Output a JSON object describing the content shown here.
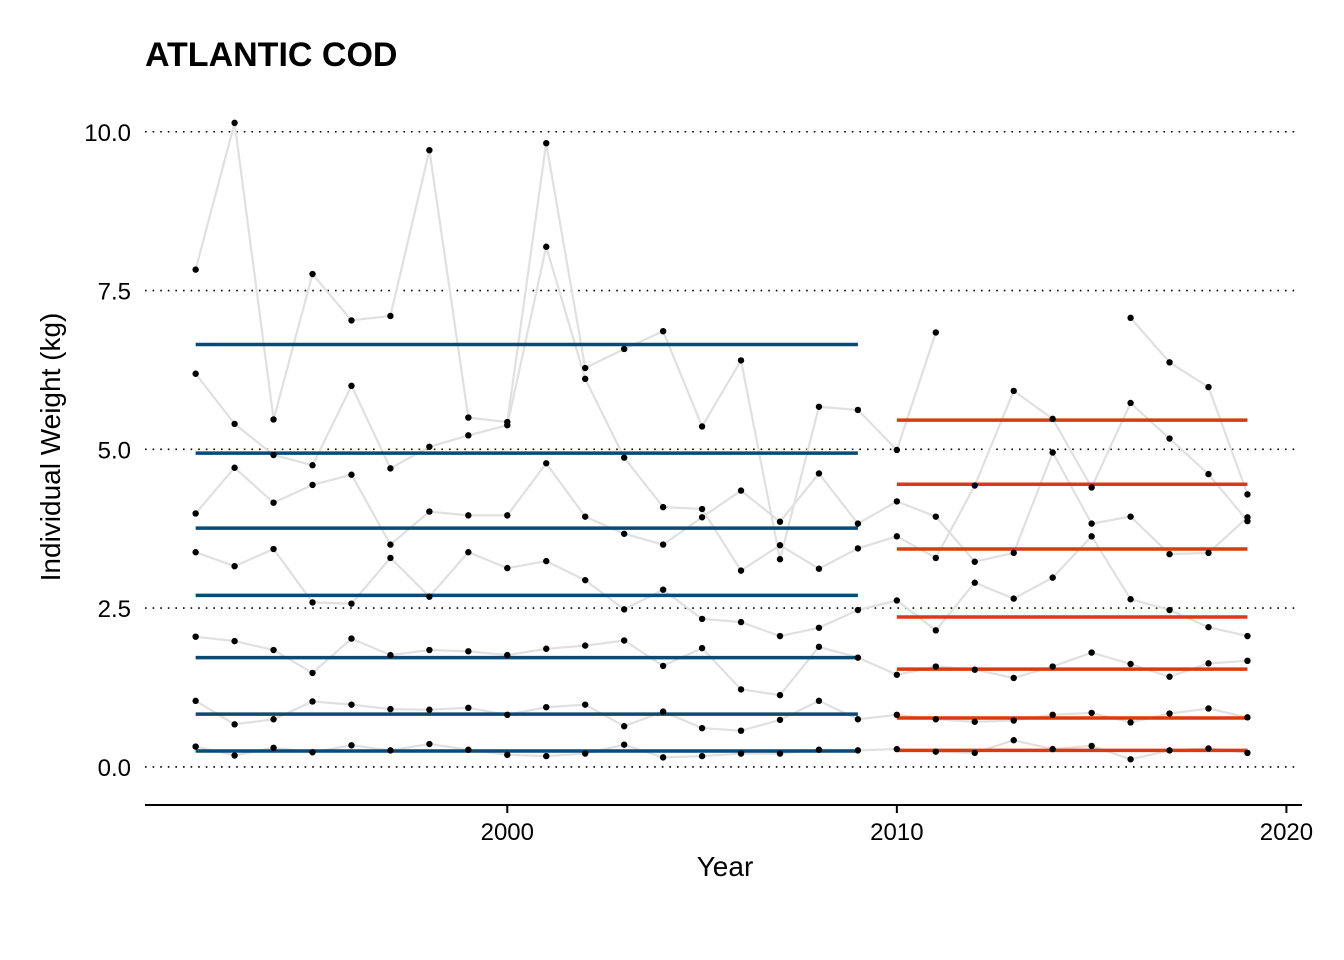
{
  "chart_data": {
    "type": "line",
    "title": "ATLANTIC COD",
    "xlabel": "Year",
    "ylabel": "Individual Weight (kg)",
    "xlim": [
      1990.7,
      2020.4
    ],
    "ylim": [
      -0.6,
      10.5
    ],
    "x_ticks": [
      2000,
      2010,
      2020
    ],
    "y_ticks": [
      0.0,
      2.5,
      5.0,
      7.5,
      10.0
    ],
    "y_tick_labels": [
      "0.0",
      "2.5",
      "5.0",
      "7.5",
      "10.0"
    ],
    "grid": "horizontal dotted",
    "years": [
      1992,
      1993,
      1994,
      1995,
      1996,
      1997,
      1998,
      1999,
      2000,
      2001,
      2002,
      2003,
      2004,
      2005,
      2006,
      2007,
      2008,
      2009,
      2010,
      2011,
      2012,
      2013,
      2014,
      2015,
      2016,
      2017,
      2018,
      2019
    ],
    "series": [
      {
        "values": [
          0.32,
          0.18,
          0.3,
          0.23,
          0.34,
          0.26,
          0.36,
          0.27,
          0.19,
          0.17,
          0.21,
          0.35,
          0.15,
          0.17,
          0.21,
          0.21,
          0.27,
          0.26,
          0.28,
          0.24,
          0.22,
          0.42,
          0.28,
          0.33,
          0.12,
          0.26,
          0.29,
          0.22
        ]
      },
      {
        "values": [
          1.04,
          0.67,
          0.75,
          1.03,
          0.98,
          0.91,
          0.9,
          0.93,
          0.82,
          0.94,
          0.98,
          0.64,
          0.87,
          0.61,
          0.57,
          0.74,
          1.04,
          0.75,
          0.82,
          0.75,
          0.71,
          0.73,
          0.82,
          0.85,
          0.7,
          0.84,
          0.92,
          0.78
        ]
      },
      {
        "values": [
          2.05,
          1.98,
          1.84,
          1.48,
          2.02,
          1.76,
          1.84,
          1.82,
          1.76,
          1.86,
          1.91,
          1.99,
          1.59,
          1.87,
          1.22,
          1.13,
          1.89,
          1.72,
          1.45,
          1.58,
          1.53,
          1.4,
          1.58,
          1.8,
          1.62,
          1.42,
          1.63,
          1.67
        ]
      },
      {
        "values": [
          3.38,
          3.16,
          3.43,
          2.59,
          2.57,
          3.29,
          2.68,
          3.38,
          3.13,
          3.24,
          2.94,
          2.48,
          2.79,
          2.33,
          2.28,
          2.06,
          2.19,
          2.47,
          2.62,
          2.15,
          2.9,
          2.65,
          2.98,
          3.63,
          2.64,
          2.47,
          2.2,
          2.06
        ]
      },
      {
        "values": [
          3.99,
          4.71,
          4.16,
          4.44,
          4.6,
          3.5,
          4.02,
          3.96,
          3.96,
          4.78,
          3.94,
          3.67,
          3.5,
          3.93,
          4.35,
          3.86,
          4.62,
          3.83,
          4.18,
          3.94,
          3.23,
          3.37,
          4.95,
          3.83,
          3.94,
          3.35,
          3.37,
          3.93
        ]
      },
      {
        "values": [
          6.19,
          5.4,
          4.91,
          4.75,
          6.0,
          4.7,
          5.04,
          5.22,
          5.38,
          8.19,
          6.11,
          4.87,
          4.09,
          4.06,
          3.09,
          3.49,
          3.12,
          3.44,
          3.63,
          3.29,
          4.43,
          5.92,
          5.48,
          4.4,
          5.73,
          5.17,
          4.61,
          3.87
        ]
      },
      {
        "values": [
          7.83,
          10.14,
          5.47,
          7.76,
          7.03,
          7.1,
          9.71,
          5.5,
          5.43,
          9.82,
          6.28,
          6.58,
          6.86,
          5.36,
          6.4,
          3.27,
          5.67,
          5.62,
          4.99,
          6.84,
          null,
          null,
          null,
          null,
          7.07,
          6.37,
          5.98,
          4.29
        ]
      }
    ],
    "period_medians": [
      {
        "period": [
          1992,
          2009
        ],
        "color": "#0a4a74",
        "levels": [
          0.25,
          0.83,
          1.72,
          2.7,
          3.76,
          4.94,
          6.65
        ]
      },
      {
        "period": [
          2010,
          2019
        ],
        "color": "#dc3912",
        "levels": [
          0.26,
          0.77,
          1.54,
          2.36,
          3.43,
          4.45,
          5.46
        ]
      }
    ],
    "line_color": "#e0e0e0",
    "point_color": "#000000"
  }
}
